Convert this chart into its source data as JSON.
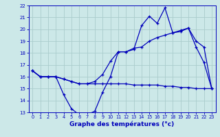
{
  "xlabel": "Graphe des températures (°c)",
  "bg_color": "#cce8e8",
  "grid_color": "#aacccc",
  "line_color": "#0000bb",
  "x_hours": [
    0,
    1,
    2,
    3,
    4,
    5,
    6,
    7,
    8,
    9,
    10,
    11,
    12,
    13,
    14,
    15,
    16,
    17,
    18,
    19,
    20,
    21,
    22,
    23
  ],
  "line_flat": [
    16.5,
    16.0,
    16.0,
    16.0,
    15.8,
    15.6,
    15.4,
    15.4,
    15.4,
    15.4,
    15.4,
    15.4,
    15.4,
    15.3,
    15.3,
    15.3,
    15.3,
    15.2,
    15.2,
    15.1,
    15.1,
    15.0,
    15.0,
    15.0
  ],
  "line_measured": [
    16.5,
    16.0,
    16.0,
    16.0,
    14.5,
    13.3,
    12.8,
    12.8,
    13.1,
    14.7,
    16.0,
    18.1,
    18.1,
    18.3,
    20.3,
    21.1,
    20.5,
    21.8,
    19.7,
    19.8,
    20.1,
    18.5,
    17.2,
    15.0
  ],
  "line_rising": [
    16.5,
    16.0,
    16.0,
    16.0,
    15.8,
    15.6,
    15.4,
    15.4,
    15.6,
    16.2,
    17.3,
    18.1,
    18.1,
    18.4,
    18.5,
    19.0,
    19.3,
    19.5,
    19.7,
    19.9,
    20.1,
    19.0,
    18.5,
    15.0
  ],
  "ylim": [
    13,
    22
  ],
  "xlim_min": -0.5,
  "xlim_max": 23.5,
  "yticks": [
    13,
    14,
    15,
    16,
    17,
    18,
    19,
    20,
    21,
    22
  ],
  "xticks": [
    0,
    1,
    2,
    3,
    4,
    5,
    6,
    7,
    8,
    9,
    10,
    11,
    12,
    13,
    14,
    15,
    16,
    17,
    18,
    19,
    20,
    21,
    22,
    23
  ]
}
